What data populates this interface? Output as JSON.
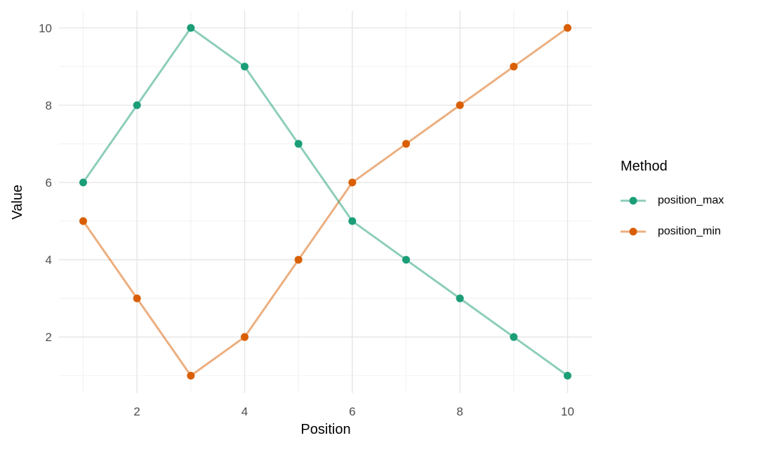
{
  "chart_data": {
    "type": "line",
    "title": "",
    "xlabel": "Position",
    "ylabel": "Value",
    "legend_title": "Method",
    "legend_position": "right",
    "x": [
      1,
      2,
      3,
      4,
      5,
      6,
      7,
      8,
      9,
      10
    ],
    "series": [
      {
        "name": "position_max",
        "color": "#1b9e77",
        "values": [
          6,
          8,
          10,
          9,
          7,
          5,
          4,
          3,
          2,
          1
        ]
      },
      {
        "name": "position_min",
        "color": "#d95f02",
        "values": [
          5,
          3,
          1,
          2,
          4,
          6,
          7,
          8,
          9,
          10
        ]
      }
    ],
    "x_ticks": [
      2,
      4,
      6,
      8,
      10
    ],
    "y_ticks": [
      2,
      4,
      6,
      8,
      10
    ],
    "x_minor_gridlines": [
      1,
      3,
      5,
      7,
      9
    ],
    "y_minor_gridlines": [
      1,
      3,
      5,
      7,
      9
    ],
    "xlim": [
      0.55,
      10.45
    ],
    "ylim": [
      0.55,
      10.45
    ],
    "grid": "major and minor, no axis lines, no tick marks",
    "line_opacity": 0.5,
    "point_radius": 5.5,
    "line_width": 3
  },
  "colors": {
    "background": "#ffffff",
    "grid_major": "#e4e4e4",
    "grid_minor": "#efefef",
    "axis_tick_text": "#4d4d4d",
    "title_text": "#000000"
  }
}
